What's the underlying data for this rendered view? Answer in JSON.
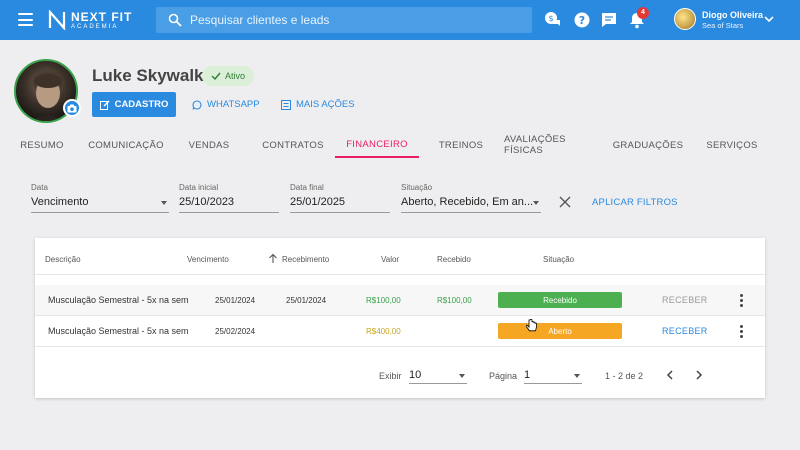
{
  "topbar": {
    "brand_line1": "NEXT FIT",
    "brand_line2": "ACADEMIA",
    "search_placeholder": "Pesquisar clientes e leads",
    "notification_count": "4",
    "user_name": "Diogo Oliveira",
    "user_unit": "Sea of Stars",
    "accent_color": "#2a8ae0"
  },
  "profile": {
    "name": "Luke Skywalker",
    "status_label": "Ativo",
    "buttons": {
      "cadastro": "CADASTRO",
      "whatsapp": "WHATSAPP",
      "mais_acoes": "MAIS AÇÕES"
    }
  },
  "tabs": [
    {
      "label": "RESUMO"
    },
    {
      "label": "COMUNICAÇÃO"
    },
    {
      "label": "VENDAS"
    },
    {
      "label": "CONTRATOS"
    },
    {
      "label": "FINANCEIRO",
      "active": true
    },
    {
      "label": "TREINOS"
    },
    {
      "label": "AVALIAÇÕES FÍSICAS"
    },
    {
      "label": "GRADUAÇÕES"
    },
    {
      "label": "SERVIÇOS"
    }
  ],
  "filters": {
    "data": {
      "label": "Data",
      "value": "Vencimento"
    },
    "data_inicial": {
      "label": "Data inicial",
      "value": "25/10/2023"
    },
    "data_final": {
      "label": "Data final",
      "value": "25/01/2025"
    },
    "situacao": {
      "label": "Situação",
      "value": "Aberto, Recebido, Em an..."
    },
    "apply_label": "APLICAR FILTROS"
  },
  "table": {
    "headers": {
      "descricao": "Descrição",
      "vencimento": "Vencimento",
      "recebimento": "Recebimento",
      "valor": "Valor",
      "recebido": "Recebido",
      "situacao": "Situação"
    },
    "rows": [
      {
        "descricao": "Musculação Semestral - 5x na sem",
        "vencimento": "25/01/2024",
        "recebimento": "25/01/2024",
        "valor": "R$100,00",
        "recebido": "R$100,00",
        "situacao": "Recebido",
        "action": "RECEBER",
        "status_color": "#4caf50"
      },
      {
        "descricao": "Musculação Semestral - 5x na sem",
        "vencimento": "25/02/2024",
        "recebimento": "",
        "valor": "R$400,00",
        "recebido": "",
        "situacao": "Aberto",
        "action": "RECEBER",
        "status_color": "#f5a623"
      }
    ]
  },
  "pager": {
    "exibir_label": "Exibir",
    "exibir_value": "10",
    "pagina_label": "Página",
    "pagina_value": "1",
    "range": "1 - 2 de 2"
  }
}
